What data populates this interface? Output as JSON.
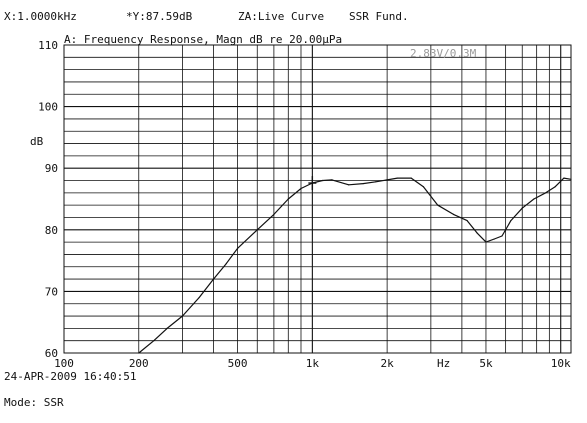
{
  "header": {
    "x_readout": "X:1.0000kHz",
    "y_readout": "*Y:87.59dB",
    "za_readout": "ZA:Live Curve",
    "mode_tag": "SSR Fund.",
    "chart_title": "A: Frequency Response, Magn dB re 20.00μPa",
    "annotation": "2.83V/0.3M"
  },
  "footer": {
    "timestamp": "24-APR-2009 16:40:51",
    "mode": "Mode: SSR"
  },
  "chart_data": {
    "type": "line",
    "title": "A: Frequency Response, Magn dB re 20.00μPa",
    "xlabel": "Hz",
    "ylabel": "dB",
    "x_scale": "log",
    "xlim": [
      100,
      11000
    ],
    "ylim": [
      60,
      110
    ],
    "grid": true,
    "cursor": {
      "x": 1000,
      "y": 87.59
    },
    "x_ticks": [
      {
        "value": 100,
        "label": "100"
      },
      {
        "value": 200,
        "label": "200"
      },
      {
        "value": 500,
        "label": "500"
      },
      {
        "value": 1000,
        "label": "1k"
      },
      {
        "value": 2000,
        "label": "2k"
      },
      {
        "value": 5000,
        "label": "5k"
      },
      {
        "value": 10000,
        "label": "10k"
      }
    ],
    "y_ticks": [
      {
        "value": 110,
        "label": "110"
      },
      {
        "value": 100,
        "label": "100"
      },
      {
        "value": 90,
        "label": "90"
      },
      {
        "value": 80,
        "label": "80"
      },
      {
        "value": 70,
        "label": "70"
      },
      {
        "value": 60,
        "label": "60"
      }
    ],
    "series": [
      {
        "x": [
          200,
          230,
          260,
          300,
          350,
          400,
          450,
          500,
          600,
          700,
          800,
          900,
          1000,
          1100,
          1200,
          1400,
          1600,
          1800,
          2000,
          2200,
          2500,
          2800,
          3200,
          3700,
          4200,
          4600,
          5000,
          5400,
          5800,
          6300,
          7000,
          7800,
          8700,
          9500,
          10300,
          11000
        ],
        "y": [
          60,
          62,
          64,
          66,
          69,
          72,
          74.5,
          77,
          80,
          82.5,
          85,
          86.7,
          87.6,
          88,
          88.1,
          87.3,
          87.5,
          87.8,
          88.1,
          88.4,
          88.4,
          87,
          84,
          82.5,
          81.5,
          79.5,
          78,
          78.5,
          79,
          81.5,
          83.5,
          85,
          86,
          87,
          88.4,
          88.2
        ]
      }
    ]
  }
}
